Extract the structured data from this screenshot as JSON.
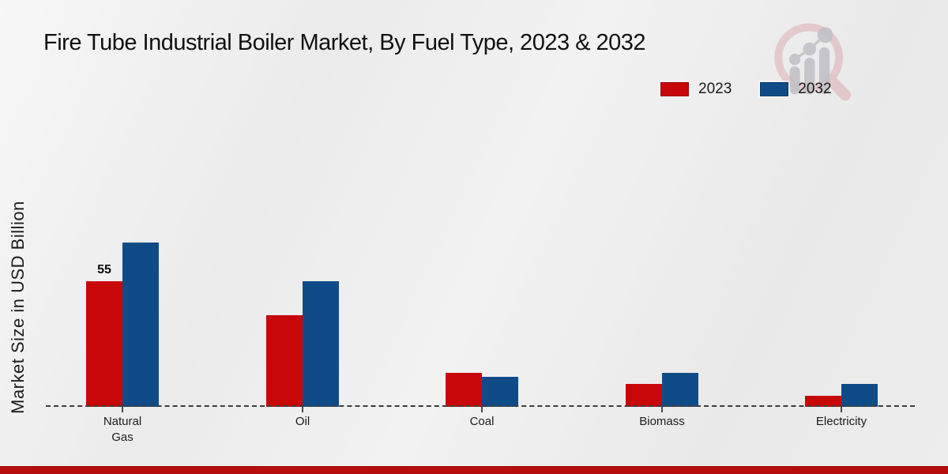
{
  "header": {
    "title": "Fire Tube Industrial Boiler Market, By Fuel Type, 2023 & 2032"
  },
  "branding": {
    "logo_icon": "magnifier-bar-chart-watermark",
    "logo_ring_color": "#dcaab0",
    "logo_bars_color": "#b6b6bd"
  },
  "footer": {
    "band_color": "#b60d0d"
  },
  "chart_data": {
    "type": "bar",
    "title": "Fire Tube Industrial Boiler Market, By Fuel Type, 2023 & 2032",
    "xlabel": "",
    "ylabel": "Market Size in USD Billion",
    "categories": [
      "Natural Gas",
      "Oil",
      "Coal",
      "Biomass",
      "Electricity"
    ],
    "series": [
      {
        "name": "2023",
        "color": "#c80808",
        "values": [
          55,
          40,
          15,
          10,
          5
        ]
      },
      {
        "name": "2032",
        "color": "#0f4c87",
        "values": [
          72,
          55,
          13,
          15,
          10
        ]
      }
    ],
    "bar_labels": [
      {
        "category": "Natural Gas",
        "series": "2023",
        "text": "55"
      }
    ],
    "ylim": [
      0,
      80
    ],
    "baseline_value": 0,
    "grid": false,
    "axis_line_style": "dashed",
    "legend_position": "top-right"
  }
}
